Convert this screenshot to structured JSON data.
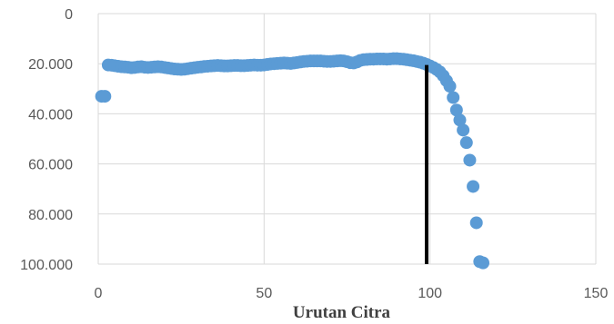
{
  "chart_data": {
    "type": "scatter",
    "title": "",
    "xlabel": "Urutan Citra",
    "ylabel": "",
    "xlim": [
      0,
      150
    ],
    "ylim": [
      0,
      100000
    ],
    "y_inverted": true,
    "grid": true,
    "legend": "none",
    "x_ticks": [
      "0",
      "50",
      "100",
      "150"
    ],
    "x_tick_values": [
      0,
      50,
      100,
      150
    ],
    "y_ticks": [
      "0",
      "20.000",
      "40.000",
      "60.000",
      "80.000",
      "100.000"
    ],
    "y_tick_values": [
      0,
      20000,
      40000,
      60000,
      80000,
      100000
    ],
    "marker_color": "#5b9bd5",
    "reference_line": {
      "x": 99,
      "from_y": 20500,
      "to_y": 100000,
      "color": "#000000"
    },
    "series": [
      {
        "x": [
          1,
          2,
          3,
          4,
          5,
          6,
          7,
          8,
          9,
          10,
          11,
          12,
          13,
          14,
          15,
          16,
          17,
          18,
          19,
          20,
          21,
          22,
          23,
          24,
          25,
          26,
          27,
          28,
          29,
          30,
          31,
          32,
          33,
          34,
          35,
          36,
          37,
          38,
          39,
          40,
          41,
          42,
          43,
          44,
          45,
          46,
          47,
          48,
          49,
          50,
          51,
          52,
          53,
          54,
          55,
          56,
          57,
          58,
          59,
          60,
          61,
          62,
          63,
          64,
          65,
          66,
          67,
          68,
          69,
          70,
          71,
          72,
          73,
          74,
          75,
          76,
          77,
          78,
          79,
          80,
          81,
          82,
          83,
          84,
          85,
          86,
          87,
          88,
          89,
          90,
          91,
          92,
          93,
          94,
          95,
          96,
          97,
          98,
          99,
          100,
          101,
          102,
          103,
          104,
          105,
          106,
          107,
          108,
          109,
          110,
          111,
          112,
          113,
          114,
          115,
          116
        ],
        "y": [
          33000,
          33000,
          20500,
          20600,
          20800,
          21000,
          21200,
          21300,
          21400,
          21600,
          21500,
          21300,
          21200,
          21400,
          21500,
          21400,
          21300,
          21200,
          21300,
          21500,
          21700,
          21900,
          22100,
          22200,
          22300,
          22200,
          22000,
          21800,
          21600,
          21400,
          21300,
          21100,
          21000,
          20900,
          20800,
          20700,
          20800,
          20900,
          20900,
          20800,
          20700,
          20700,
          20800,
          20800,
          20700,
          20600,
          20500,
          20600,
          20600,
          20500,
          20300,
          20100,
          20000,
          19900,
          19800,
          19700,
          19800,
          19900,
          19700,
          19500,
          19300,
          19100,
          19000,
          18900,
          18900,
          18900,
          18900,
          19000,
          19100,
          19100,
          19000,
          18900,
          18800,
          18900,
          19200,
          19600,
          19700,
          19300,
          18700,
          18400,
          18300,
          18200,
          18200,
          18100,
          18100,
          18100,
          18200,
          18100,
          18000,
          18000,
          18100,
          18200,
          18400,
          18600,
          18800,
          19100,
          19400,
          19800,
          20300,
          20900,
          21500,
          22300,
          23300,
          24800,
          26800,
          29000,
          33500,
          38500,
          42500,
          46500,
          51500,
          58500,
          69000,
          83500,
          99000,
          99500
        ]
      }
    ]
  }
}
